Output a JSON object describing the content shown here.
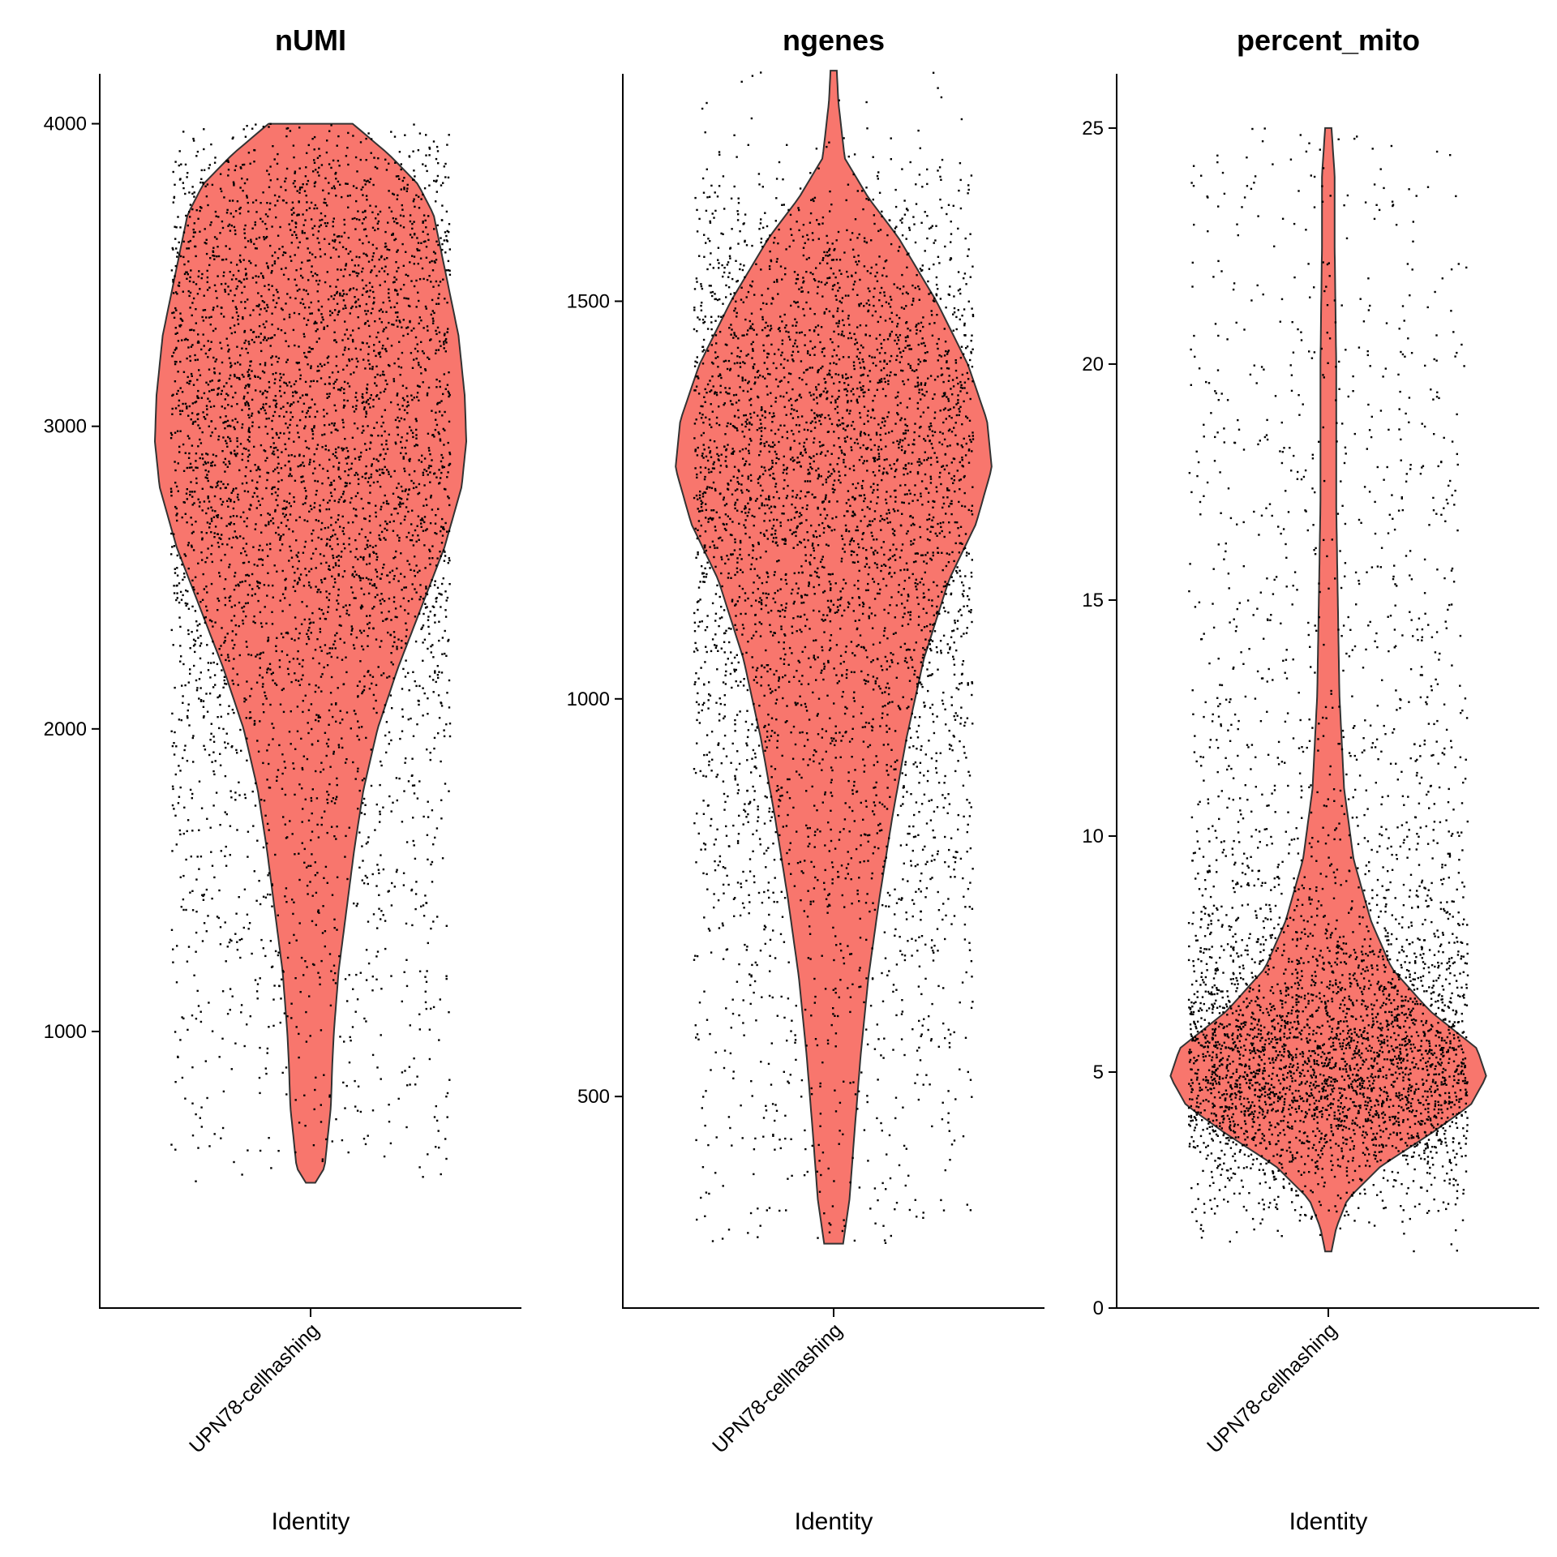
{
  "chart_data": [
    {
      "type": "violin",
      "title": "nUMI",
      "xlabel": "Identity",
      "ylabel": "",
      "category": "UPN78-cellhashing",
      "ylim": [
        86,
        4165
      ],
      "yticks": [
        1000,
        2000,
        3000,
        4000
      ],
      "fill_color": "#F8766D",
      "point_color": "#000000",
      "n_points": 4200,
      "range": [
        500,
        4000
      ],
      "density_profile": [
        [
          500,
          0.03
        ],
        [
          550,
          0.09
        ],
        [
          650,
          0.11
        ],
        [
          750,
          0.13
        ],
        [
          900,
          0.14
        ],
        [
          1000,
          0.15
        ],
        [
          1200,
          0.18
        ],
        [
          1400,
          0.23
        ],
        [
          1600,
          0.28
        ],
        [
          1800,
          0.34
        ],
        [
          2000,
          0.43
        ],
        [
          2200,
          0.56
        ],
        [
          2400,
          0.71
        ],
        [
          2600,
          0.86
        ],
        [
          2800,
          0.97
        ],
        [
          2950,
          1.0
        ],
        [
          3100,
          0.99
        ],
        [
          3300,
          0.95
        ],
        [
          3500,
          0.87
        ],
        [
          3700,
          0.79
        ],
        [
          3800,
          0.69
        ],
        [
          3900,
          0.5
        ],
        [
          4000,
          0.27
        ]
      ]
    },
    {
      "type": "violin",
      "title": "ngenes",
      "xlabel": "Identity",
      "ylabel": "",
      "category": "UPN78-cellhashing",
      "ylim": [
        234,
        1786
      ],
      "yticks": [
        500,
        1000,
        1500
      ],
      "fill_color": "#F8766D",
      "point_color": "#000000",
      "n_points": 4200,
      "range": [
        315,
        1790
      ],
      "density_profile": [
        [
          315,
          0.06
        ],
        [
          370,
          0.1
        ],
        [
          450,
          0.13
        ],
        [
          550,
          0.17
        ],
        [
          650,
          0.22
        ],
        [
          750,
          0.29
        ],
        [
          850,
          0.37
        ],
        [
          950,
          0.46
        ],
        [
          1050,
          0.57
        ],
        [
          1150,
          0.73
        ],
        [
          1220,
          0.9
        ],
        [
          1290,
          1.0
        ],
        [
          1350,
          0.97
        ],
        [
          1420,
          0.85
        ],
        [
          1500,
          0.65
        ],
        [
          1580,
          0.41
        ],
        [
          1630,
          0.22
        ],
        [
          1680,
          0.07
        ],
        [
          1750,
          0.03
        ],
        [
          1790,
          0.02
        ]
      ]
    },
    {
      "type": "violin",
      "title": "percent_mito",
      "xlabel": "Identity",
      "ylabel": "",
      "category": "UPN78-cellhashing",
      "ylim": [
        0,
        26.15
      ],
      "yticks": [
        0,
        5,
        10,
        15,
        20,
        25
      ],
      "fill_color": "#F8766D",
      "point_color": "#000000",
      "n_points": 4200,
      "range": [
        1.2,
        25
      ],
      "density_profile": [
        [
          1.2,
          0.02
        ],
        [
          1.7,
          0.05
        ],
        [
          2.3,
          0.12
        ],
        [
          3.0,
          0.33
        ],
        [
          3.7,
          0.65
        ],
        [
          4.3,
          0.9
        ],
        [
          4.9,
          1.0
        ],
        [
          5.5,
          0.94
        ],
        [
          6.3,
          0.64
        ],
        [
          7.2,
          0.4
        ],
        [
          8.2,
          0.27
        ],
        [
          9.5,
          0.16
        ],
        [
          11.0,
          0.1
        ],
        [
          13.0,
          0.07
        ],
        [
          15.0,
          0.06
        ],
        [
          17.0,
          0.05
        ],
        [
          20.0,
          0.05
        ],
        [
          22.5,
          0.04
        ],
        [
          24.0,
          0.04
        ],
        [
          25.0,
          0.02
        ]
      ]
    }
  ]
}
